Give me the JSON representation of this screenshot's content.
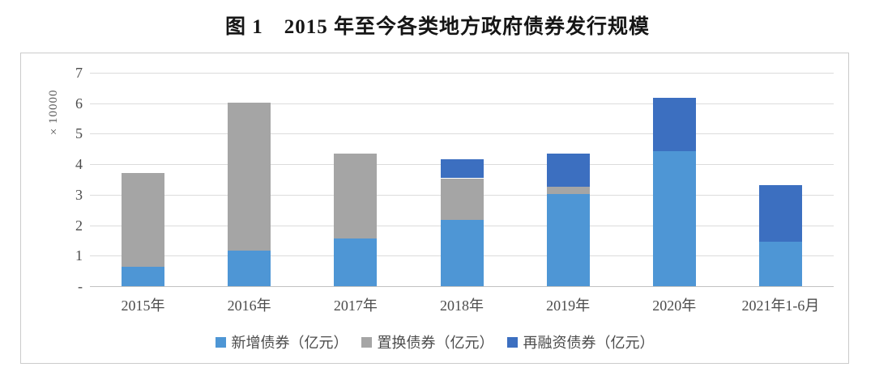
{
  "chart_data": {
    "type": "bar",
    "stacked": true,
    "title": "图 1　2015 年至今各类地方政府债券发行规模",
    "categories": [
      "2015年",
      "2016年",
      "2017年",
      "2018年",
      "2019年",
      "2020年",
      "2021年1-6月"
    ],
    "series": [
      {
        "name": "新增债券（亿元）",
        "color": "#4e96d5",
        "values": [
          6400,
          11700,
          15700,
          21700,
          30300,
          44300,
          14600
        ]
      },
      {
        "name": "置换债券（亿元）",
        "color": "#a5a5a5",
        "values": [
          30800,
          48500,
          27800,
          13700,
          2200,
          0,
          0
        ]
      },
      {
        "name": "再融资债券（亿元）",
        "color": "#3c6fc0",
        "values": [
          0,
          0,
          0,
          6300,
          11000,
          17600,
          18500
        ]
      }
    ],
    "ylabel": "×10000",
    "xlabel": "",
    "ylim": [
      0,
      70000
    ],
    "yticks_top_to_bottom": [
      "7",
      "6",
      "5",
      "4",
      "3",
      "2",
      "1",
      "-"
    ],
    "axis_scale_note": "y axis shown in units of 10000 亿元",
    "grid": true,
    "legend_position": "bottom",
    "style": {
      "gridline_color": "#dcdcdc",
      "axis_line_color": "#c2c2c2",
      "box_border_color": "#cbcbcb",
      "text_color": "#4c4c4c",
      "title_color": "#161616",
      "background": "#ffffff"
    }
  }
}
